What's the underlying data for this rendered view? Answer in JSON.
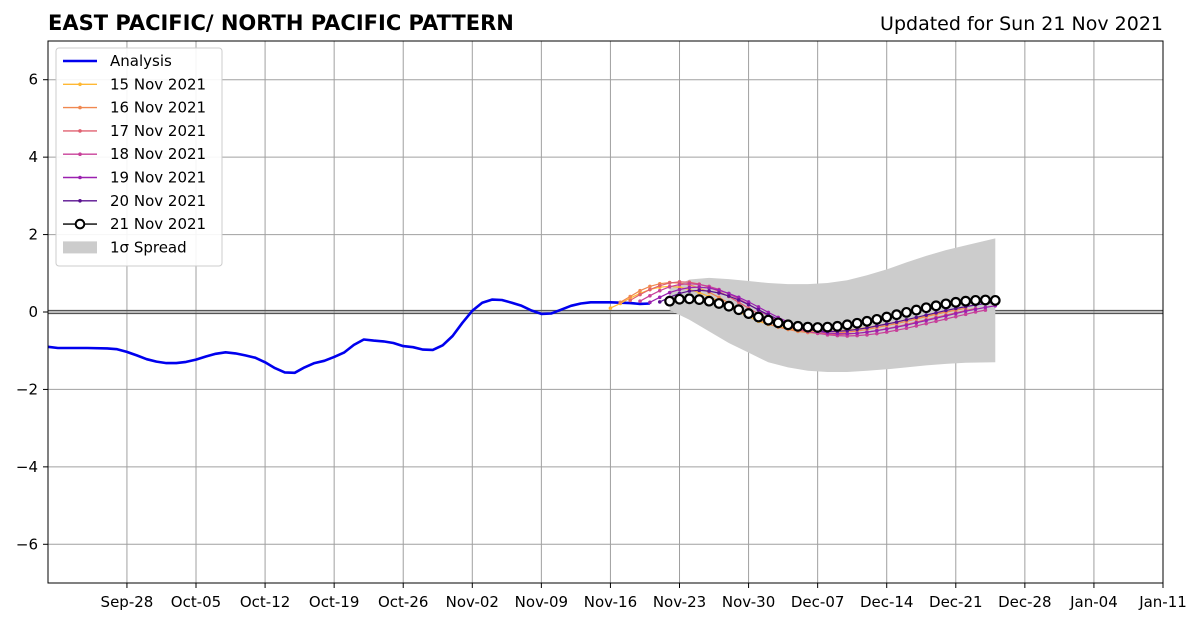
{
  "chart_data": {
    "type": "line",
    "title": "EAST PACIFIC/ NORTH PACIFIC PATTERN",
    "subtitle": "Updated for Sun 21 Nov 2021",
    "xlabel": "",
    "ylabel": "",
    "xlim": [
      "2021-09-20",
      "2022-01-11"
    ],
    "ylim": [
      -7,
      7
    ],
    "x_ticks": [
      "2021-09-28",
      "2021-10-05",
      "2021-10-12",
      "2021-10-19",
      "2021-10-26",
      "2021-11-02",
      "2021-11-09",
      "2021-11-16",
      "2021-11-23",
      "2021-11-30",
      "2021-12-07",
      "2021-12-14",
      "2021-12-21",
      "2021-12-28",
      "2022-01-04",
      "2022-01-11"
    ],
    "x_tick_labels": [
      "Sep-28",
      "Oct-05",
      "Oct-12",
      "Oct-19",
      "Oct-26",
      "Nov-02",
      "Nov-09",
      "Nov-16",
      "Nov-23",
      "Nov-30",
      "Dec-07",
      "Dec-14",
      "Dec-21",
      "Dec-28",
      "Jan-04",
      "Jan-11"
    ],
    "y_ticks": [
      -6,
      -4,
      -2,
      0,
      2,
      4,
      6
    ],
    "y_tick_labels": [
      "−6",
      "−4",
      "−2",
      "0",
      "2",
      "4",
      "6"
    ],
    "grid": true,
    "legend_position": "top-left",
    "series": [
      {
        "name": "Analysis",
        "color": "#0000ee",
        "style": "thick-line",
        "x": [
          "2021-09-20",
          "2021-09-21",
          "2021-09-22",
          "2021-09-24",
          "2021-09-26",
          "2021-09-27",
          "2021-09-28",
          "2021-09-29",
          "2021-09-30",
          "2021-10-01",
          "2021-10-02",
          "2021-10-03",
          "2021-10-04",
          "2021-10-05",
          "2021-10-06",
          "2021-10-07",
          "2021-10-08",
          "2021-10-09",
          "2021-10-10",
          "2021-10-11",
          "2021-10-12",
          "2021-10-13",
          "2021-10-14",
          "2021-10-15",
          "2021-10-16",
          "2021-10-17",
          "2021-10-18",
          "2021-10-19",
          "2021-10-20",
          "2021-10-21",
          "2021-10-22",
          "2021-10-23",
          "2021-10-24",
          "2021-10-25",
          "2021-10-26",
          "2021-10-27",
          "2021-10-28",
          "2021-10-29",
          "2021-10-30",
          "2021-10-31",
          "2021-11-01",
          "2021-11-02",
          "2021-11-03",
          "2021-11-04",
          "2021-11-05",
          "2021-11-06",
          "2021-11-07",
          "2021-11-08",
          "2021-11-09",
          "2021-11-10",
          "2021-11-11",
          "2021-11-12",
          "2021-11-13",
          "2021-11-14",
          "2021-11-15",
          "2021-11-16",
          "2021-11-17",
          "2021-11-18",
          "2021-11-19",
          "2021-11-20"
        ],
        "y": [
          -0.9,
          -0.93,
          -0.93,
          -0.93,
          -0.94,
          -0.96,
          -1.03,
          -1.12,
          -1.22,
          -1.28,
          -1.32,
          -1.32,
          -1.29,
          -1.23,
          -1.15,
          -1.08,
          -1.04,
          -1.07,
          -1.12,
          -1.18,
          -1.3,
          -1.45,
          -1.56,
          -1.57,
          -1.43,
          -1.32,
          -1.26,
          -1.16,
          -1.05,
          -0.85,
          -0.71,
          -0.74,
          -0.76,
          -0.8,
          -0.88,
          -0.91,
          -0.97,
          -0.98,
          -0.86,
          -0.62,
          -0.28,
          0.03,
          0.24,
          0.32,
          0.31,
          0.24,
          0.16,
          0.04,
          -0.05,
          -0.04,
          0.06,
          0.16,
          0.22,
          0.25,
          0.25,
          0.25,
          0.24,
          0.23,
          0.21,
          0.22
        ]
      },
      {
        "name": "15 Nov 2021",
        "color": "#ffb833",
        "style": "small-marker",
        "x": [
          "2021-11-16",
          "2021-11-17",
          "2021-11-18",
          "2021-11-19",
          "2021-11-20",
          "2021-11-21",
          "2021-11-22",
          "2021-11-23",
          "2021-11-24",
          "2021-11-25",
          "2021-11-26",
          "2021-11-27",
          "2021-11-28",
          "2021-11-29",
          "2021-11-30",
          "2021-12-01",
          "2021-12-02",
          "2021-12-03",
          "2021-12-04",
          "2021-12-05",
          "2021-12-06",
          "2021-12-07",
          "2021-12-08",
          "2021-12-09",
          "2021-12-10",
          "2021-12-11",
          "2021-12-12",
          "2021-12-13",
          "2021-12-14",
          "2021-12-15",
          "2021-12-16",
          "2021-12-17",
          "2021-12-18",
          "2021-12-19",
          "2021-12-20",
          "2021-12-21"
        ],
        "y": [
          0.1,
          0.22,
          0.36,
          0.48,
          0.58,
          0.64,
          0.66,
          0.64,
          0.58,
          0.5,
          0.4,
          0.28,
          0.14,
          0.0,
          -0.12,
          -0.24,
          -0.32,
          -0.38,
          -0.43,
          -0.46,
          -0.48,
          -0.5,
          -0.5,
          -0.49,
          -0.47,
          -0.44,
          -0.4,
          -0.36,
          -0.31,
          -0.26,
          -0.2,
          -0.15,
          -0.1,
          -0.05,
          0.0,
          0.05
        ]
      },
      {
        "name": "16 Nov 2021",
        "color": "#f08850",
        "style": "small-marker",
        "x": [
          "2021-11-17",
          "2021-11-18",
          "2021-11-19",
          "2021-11-20",
          "2021-11-21",
          "2021-11-22",
          "2021-11-23",
          "2021-11-24",
          "2021-11-25",
          "2021-11-26",
          "2021-11-27",
          "2021-11-28",
          "2021-11-29",
          "2021-11-30",
          "2021-12-01",
          "2021-12-02",
          "2021-12-03",
          "2021-12-04",
          "2021-12-05",
          "2021-12-06",
          "2021-12-07",
          "2021-12-08",
          "2021-12-09",
          "2021-12-10",
          "2021-12-11",
          "2021-12-12",
          "2021-12-13",
          "2021-12-14",
          "2021-12-15",
          "2021-12-16",
          "2021-12-17",
          "2021-12-18",
          "2021-12-19",
          "2021-12-20",
          "2021-12-21",
          "2021-12-22"
        ],
        "y": [
          0.25,
          0.4,
          0.55,
          0.66,
          0.73,
          0.76,
          0.75,
          0.7,
          0.62,
          0.51,
          0.38,
          0.23,
          0.08,
          -0.07,
          -0.2,
          -0.31,
          -0.39,
          -0.45,
          -0.5,
          -0.53,
          -0.55,
          -0.55,
          -0.54,
          -0.52,
          -0.49,
          -0.45,
          -0.4,
          -0.35,
          -0.3,
          -0.24,
          -0.18,
          -0.12,
          -0.06,
          0.0,
          0.05,
          0.1
        ]
      },
      {
        "name": "17 Nov 2021",
        "color": "#e06070",
        "style": "small-marker",
        "x": [
          "2021-11-18",
          "2021-11-19",
          "2021-11-20",
          "2021-11-21",
          "2021-11-22",
          "2021-11-23",
          "2021-11-24",
          "2021-11-25",
          "2021-11-26",
          "2021-11-27",
          "2021-11-28",
          "2021-11-29",
          "2021-11-30",
          "2021-12-01",
          "2021-12-02",
          "2021-12-03",
          "2021-12-04",
          "2021-12-05",
          "2021-12-06",
          "2021-12-07",
          "2021-12-08",
          "2021-12-09",
          "2021-12-10",
          "2021-12-11",
          "2021-12-12",
          "2021-12-13",
          "2021-12-14",
          "2021-12-15",
          "2021-12-16",
          "2021-12-17",
          "2021-12-18",
          "2021-12-19",
          "2021-12-20",
          "2021-12-21",
          "2021-12-22",
          "2021-12-23"
        ],
        "y": [
          0.3,
          0.45,
          0.58,
          0.68,
          0.75,
          0.78,
          0.77,
          0.72,
          0.64,
          0.53,
          0.4,
          0.25,
          0.1,
          -0.05,
          -0.19,
          -0.3,
          -0.39,
          -0.46,
          -0.51,
          -0.55,
          -0.57,
          -0.58,
          -0.57,
          -0.55,
          -0.52,
          -0.48,
          -0.43,
          -0.38,
          -0.32,
          -0.26,
          -0.2,
          -0.14,
          -0.08,
          -0.02,
          0.04,
          0.09
        ]
      },
      {
        "name": "18 Nov 2021",
        "color": "#c8409a",
        "style": "small-marker",
        "x": [
          "2021-11-19",
          "2021-11-20",
          "2021-11-21",
          "2021-11-22",
          "2021-11-23",
          "2021-11-24",
          "2021-11-25",
          "2021-11-26",
          "2021-11-27",
          "2021-11-28",
          "2021-11-29",
          "2021-11-30",
          "2021-12-01",
          "2021-12-02",
          "2021-12-03",
          "2021-12-04",
          "2021-12-05",
          "2021-12-06",
          "2021-12-07",
          "2021-12-08",
          "2021-12-09",
          "2021-12-10",
          "2021-12-11",
          "2021-12-12",
          "2021-12-13",
          "2021-12-14",
          "2021-12-15",
          "2021-12-16",
          "2021-12-17",
          "2021-12-18",
          "2021-12-19",
          "2021-12-20",
          "2021-12-21",
          "2021-12-22",
          "2021-12-23",
          "2021-12-24"
        ],
        "y": [
          0.28,
          0.42,
          0.55,
          0.65,
          0.71,
          0.73,
          0.71,
          0.66,
          0.58,
          0.47,
          0.34,
          0.2,
          0.05,
          -0.1,
          -0.23,
          -0.34,
          -0.43,
          -0.5,
          -0.55,
          -0.59,
          -0.61,
          -0.62,
          -0.61,
          -0.59,
          -0.56,
          -0.52,
          -0.47,
          -0.42,
          -0.36,
          -0.3,
          -0.24,
          -0.18,
          -0.12,
          -0.06,
          0.0,
          0.05
        ]
      },
      {
        "name": "19 Nov 2021",
        "color": "#9b20b0",
        "style": "small-marker",
        "x": [
          "2021-11-20",
          "2021-11-21",
          "2021-11-22",
          "2021-11-23",
          "2021-11-24",
          "2021-11-25",
          "2021-11-26",
          "2021-11-27",
          "2021-11-28",
          "2021-11-29",
          "2021-11-30",
          "2021-12-01",
          "2021-12-02",
          "2021-12-03",
          "2021-12-04",
          "2021-12-05",
          "2021-12-06",
          "2021-12-07",
          "2021-12-08",
          "2021-12-09",
          "2021-12-10",
          "2021-12-11",
          "2021-12-12",
          "2021-12-13",
          "2021-12-14",
          "2021-12-15",
          "2021-12-16",
          "2021-12-17",
          "2021-12-18",
          "2021-12-19",
          "2021-12-20",
          "2021-12-21",
          "2021-12-22",
          "2021-12-23",
          "2021-12-24",
          "2021-12-25"
        ],
        "y": [
          0.25,
          0.38,
          0.5,
          0.58,
          0.63,
          0.64,
          0.62,
          0.56,
          0.48,
          0.38,
          0.26,
          0.13,
          -0.01,
          -0.14,
          -0.26,
          -0.36,
          -0.44,
          -0.5,
          -0.54,
          -0.56,
          -0.56,
          -0.55,
          -0.52,
          -0.48,
          -0.44,
          -0.39,
          -0.34,
          -0.28,
          -0.22,
          -0.16,
          -0.1,
          -0.04,
          0.02,
          0.07,
          0.12,
          0.16
        ]
      },
      {
        "name": "20 Nov 2021",
        "color": "#5a1090",
        "style": "small-marker",
        "x": [
          "2021-11-21",
          "2021-11-22",
          "2021-11-23",
          "2021-11-24",
          "2021-11-25",
          "2021-11-26",
          "2021-11-27",
          "2021-11-28",
          "2021-11-29",
          "2021-11-30",
          "2021-12-01",
          "2021-12-02",
          "2021-12-03",
          "2021-12-04",
          "2021-12-05",
          "2021-12-06",
          "2021-12-07",
          "2021-12-08",
          "2021-12-09",
          "2021-12-10",
          "2021-12-11",
          "2021-12-12",
          "2021-12-13",
          "2021-12-14",
          "2021-12-15",
          "2021-12-16",
          "2021-12-17",
          "2021-12-18",
          "2021-12-19",
          "2021-12-20",
          "2021-12-21",
          "2021-12-22",
          "2021-12-23",
          "2021-12-24",
          "2021-12-25"
        ],
        "y": [
          0.26,
          0.38,
          0.48,
          0.54,
          0.56,
          0.54,
          0.49,
          0.41,
          0.31,
          0.19,
          0.06,
          -0.07,
          -0.19,
          -0.3,
          -0.38,
          -0.44,
          -0.48,
          -0.5,
          -0.5,
          -0.48,
          -0.45,
          -0.41,
          -0.36,
          -0.31,
          -0.26,
          -0.2,
          -0.14,
          -0.08,
          -0.02,
          0.04,
          0.09,
          0.14,
          0.18,
          0.22,
          0.25
        ]
      },
      {
        "name": "21 Nov 2021",
        "color": "#000000",
        "style": "big-marker",
        "x": [
          "2021-11-22",
          "2021-11-23",
          "2021-11-24",
          "2021-11-25",
          "2021-11-26",
          "2021-11-27",
          "2021-11-28",
          "2021-11-29",
          "2021-11-30",
          "2021-12-01",
          "2021-12-02",
          "2021-12-03",
          "2021-12-04",
          "2021-12-05",
          "2021-12-06",
          "2021-12-07",
          "2021-12-08",
          "2021-12-09",
          "2021-12-10",
          "2021-12-11",
          "2021-12-12",
          "2021-12-13",
          "2021-12-14",
          "2021-12-15",
          "2021-12-16",
          "2021-12-17",
          "2021-12-18",
          "2021-12-19",
          "2021-12-20",
          "2021-12-21",
          "2021-12-22",
          "2021-12-23",
          "2021-12-24",
          "2021-12-25"
        ],
        "y": [
          0.28,
          0.33,
          0.34,
          0.32,
          0.28,
          0.22,
          0.15,
          0.06,
          -0.04,
          -0.13,
          -0.21,
          -0.28,
          -0.33,
          -0.37,
          -0.39,
          -0.4,
          -0.39,
          -0.37,
          -0.33,
          -0.29,
          -0.24,
          -0.19,
          -0.13,
          -0.07,
          -0.01,
          0.05,
          0.11,
          0.16,
          0.21,
          0.25,
          0.28,
          0.3,
          0.31,
          0.3
        ]
      }
    ],
    "spread": {
      "name": "1σ Spread",
      "color": "#cccccc",
      "x": [
        "2021-11-22",
        "2021-11-24",
        "2021-11-26",
        "2021-11-28",
        "2021-11-30",
        "2021-12-02",
        "2021-12-04",
        "2021-12-06",
        "2021-12-08",
        "2021-12-10",
        "2021-12-12",
        "2021-12-14",
        "2021-12-16",
        "2021-12-18",
        "2021-12-20",
        "2021-12-22",
        "2021-12-25"
      ],
      "upper": [
        0.6,
        0.84,
        0.88,
        0.85,
        0.8,
        0.75,
        0.72,
        0.72,
        0.75,
        0.82,
        0.95,
        1.1,
        1.28,
        1.45,
        1.6,
        1.72,
        1.9
      ],
      "lower": [
        0.05,
        -0.2,
        -0.5,
        -0.8,
        -1.05,
        -1.3,
        -1.43,
        -1.52,
        -1.55,
        -1.55,
        -1.52,
        -1.48,
        -1.43,
        -1.38,
        -1.34,
        -1.31,
        -1.3
      ]
    }
  }
}
